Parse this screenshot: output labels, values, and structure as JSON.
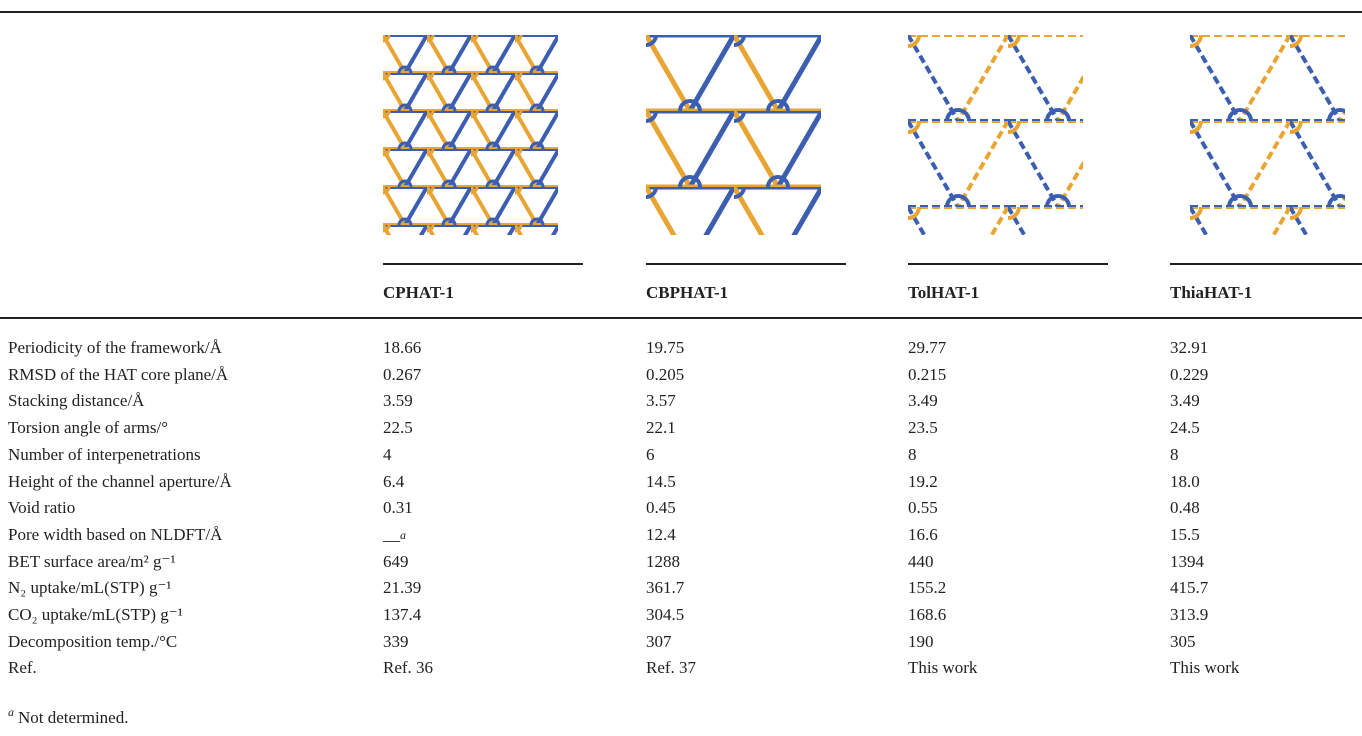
{
  "table": {
    "headers": [
      "CPHAT-1",
      "CBPHAT-1",
      "TolHAT-1",
      "ThiaHAT-1"
    ],
    "rows": [
      [
        "Periodicity of the framework/Å",
        "18.66",
        "19.75",
        "29.77",
        "32.91"
      ],
      [
        "RMSD of the HAT core plane/Å",
        "0.267",
        "0.205",
        "0.215",
        "0.229"
      ],
      [
        "Stacking distance/Å",
        "3.59",
        "3.57",
        "3.49",
        "3.49"
      ],
      [
        "Torsion angle of arms/°",
        "22.5",
        "22.1",
        "23.5",
        "24.5"
      ],
      [
        "Number of interpenetrations",
        "4",
        "6",
        "8",
        "8"
      ],
      [
        "Height of the channel aperture/Å",
        "6.4",
        "14.5",
        "19.2",
        "18.0"
      ],
      [
        "Void ratio",
        "0.31",
        "0.45",
        "0.55",
        "0.48"
      ],
      [
        "Pore width based on NLDFT/Å",
        {
          "text": "—",
          "note": "a"
        },
        "12.4",
        "16.6",
        "15.5"
      ],
      [
        "BET surface area/m² g⁻¹",
        "649",
        "1288",
        "440",
        "1394"
      ],
      [
        "N₂ uptake/mL(STP) g⁻¹",
        "21.39",
        "361.7",
        "155.2",
        "415.7"
      ],
      [
        "CO₂ uptake/mL(STP) g⁻¹",
        "137.4",
        "304.5",
        "168.6",
        "313.9"
      ],
      [
        "Decomposition temp./°C",
        "339",
        "307",
        "190",
        "305"
      ],
      [
        "Ref.",
        "Ref. 36",
        "Ref. 37",
        "This work",
        "This work"
      ]
    ],
    "footnote": {
      "marker": "a",
      "text": "Not determined."
    }
  }
}
